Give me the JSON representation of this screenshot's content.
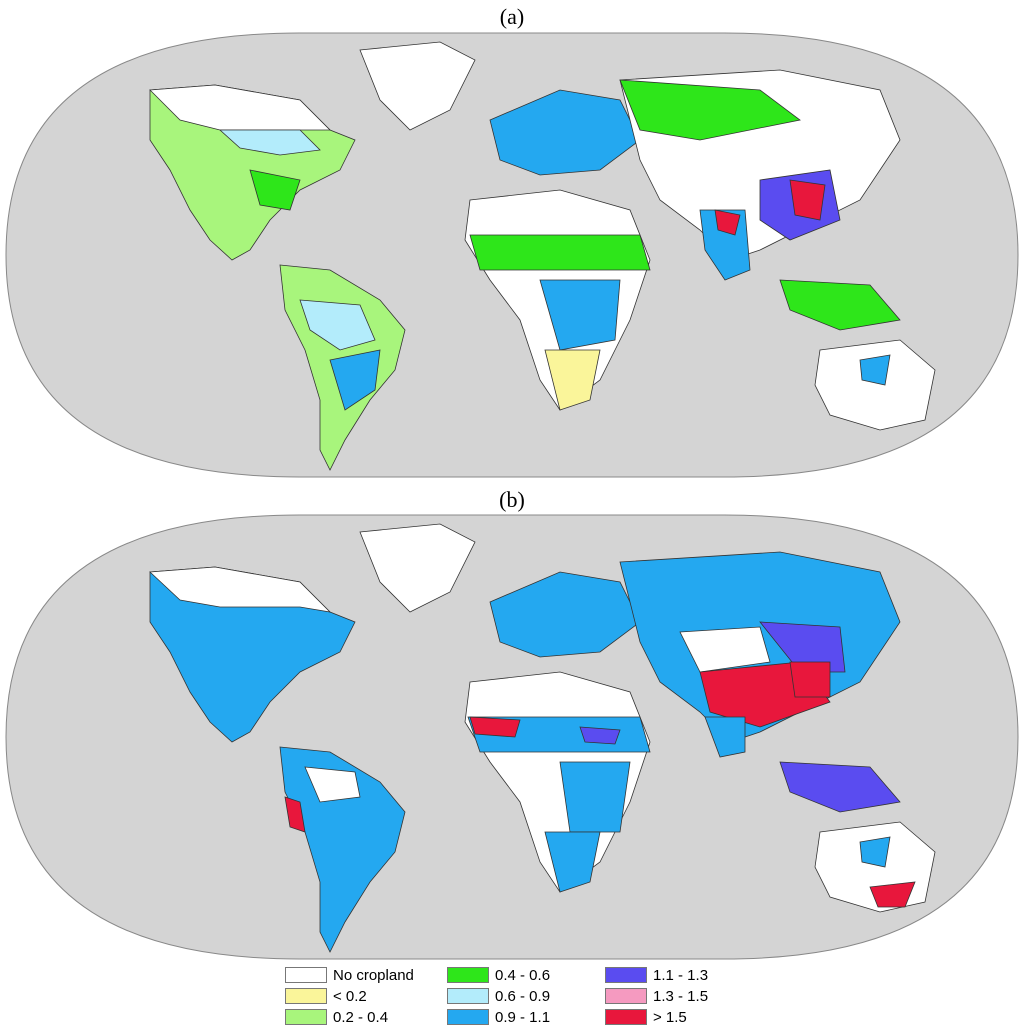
{
  "panels": [
    {
      "label": "(a)"
    },
    {
      "label": "(b)"
    }
  ],
  "colors": {
    "ocean": "#d4d4d4",
    "no_cropland": "#ffffff",
    "lt_0_2": "#faf59a",
    "c_0_2_0_4": "#a8f57c",
    "c_0_4_0_6": "#2ee61a",
    "c_0_6_0_9": "#b3ecfb",
    "c_0_9_1_1": "#24a8f0",
    "c_1_1_1_3": "#5a4cf0",
    "c_1_3_1_5": "#f59ac0",
    "gt_1_5": "#e8173c"
  },
  "legend": [
    {
      "label": "No cropland",
      "color": "#ffffff"
    },
    {
      "label": "< 0.2",
      "color": "#faf59a"
    },
    {
      "label": "0.2 - 0.4",
      "color": "#a8f57c"
    },
    {
      "label": "0.4 - 0.6",
      "color": "#2ee61a"
    },
    {
      "label": "0.6 - 0.9",
      "color": "#b3ecfb"
    },
    {
      "label": "0.9 - 1.1",
      "color": "#24a8f0"
    },
    {
      "label": "1.1 - 1.3",
      "color": "#5a4cf0"
    },
    {
      "label": "1.3 - 1.5",
      "color": "#f59ac0"
    },
    {
      "label": "> 1.5",
      "color": "#e8173c"
    }
  ]
}
